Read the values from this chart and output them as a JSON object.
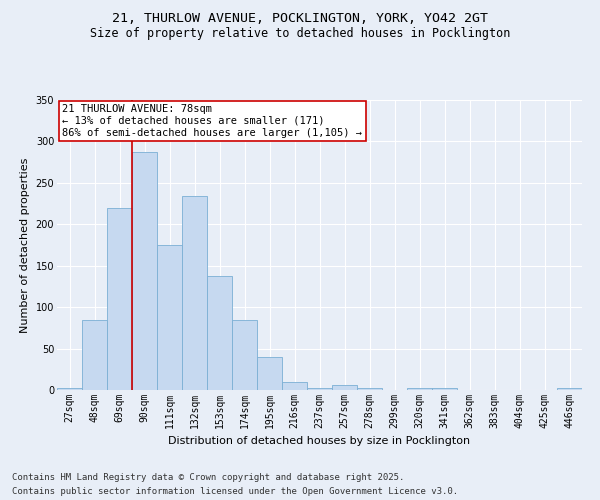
{
  "title_line1": "21, THURLOW AVENUE, POCKLINGTON, YORK, YO42 2GT",
  "title_line2": "Size of property relative to detached houses in Pocklington",
  "xlabel": "Distribution of detached houses by size in Pocklington",
  "ylabel": "Number of detached properties",
  "categories": [
    "27sqm",
    "48sqm",
    "69sqm",
    "90sqm",
    "111sqm",
    "132sqm",
    "153sqm",
    "174sqm",
    "195sqm",
    "216sqm",
    "237sqm",
    "257sqm",
    "278sqm",
    "299sqm",
    "320sqm",
    "341sqm",
    "362sqm",
    "383sqm",
    "404sqm",
    "425sqm",
    "446sqm"
  ],
  "values": [
    2,
    85,
    220,
    287,
    175,
    234,
    138,
    85,
    40,
    10,
    2,
    6,
    2,
    0,
    2,
    3,
    0,
    0,
    0,
    0,
    2
  ],
  "bar_color": "#c6d9f0",
  "bar_edge_color": "#7bafd4",
  "vline_color": "#cc0000",
  "vline_position": 2.5,
  "annotation_text": "21 THURLOW AVENUE: 78sqm\n← 13% of detached houses are smaller (171)\n86% of semi-detached houses are larger (1,105) →",
  "annotation_box_color": "#ffffff",
  "annotation_box_edge_color": "#cc0000",
  "ylim": [
    0,
    350
  ],
  "yticks": [
    0,
    50,
    100,
    150,
    200,
    250,
    300,
    350
  ],
  "background_color": "#e8eef7",
  "plot_bg_color": "#e8eef7",
  "grid_color": "#ffffff",
  "footer_line1": "Contains HM Land Registry data © Crown copyright and database right 2025.",
  "footer_line2": "Contains public sector information licensed under the Open Government Licence v3.0.",
  "title_fontsize": 9.5,
  "subtitle_fontsize": 8.5,
  "tick_fontsize": 7,
  "label_fontsize": 8,
  "annotation_fontsize": 7.5,
  "footer_fontsize": 6.5
}
